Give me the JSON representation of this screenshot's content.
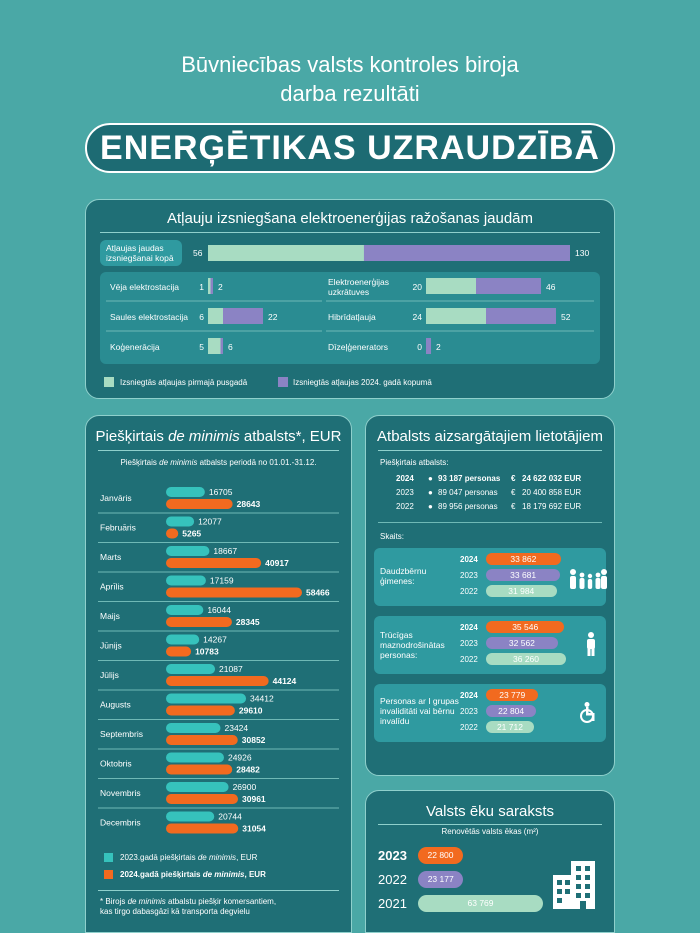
{
  "header": {
    "title_line1": "Būvniecības valsts kontroles biroja",
    "title_line2": "darba rezultāti",
    "banner": "ENERĢĒTIKAS UZRAUDZĪBĀ"
  },
  "colors": {
    "background": "#4aa8a6",
    "panel": "#1f6f76",
    "green": "#a8dcc2",
    "purple": "#8b83c4",
    "teal": "#36c2bc",
    "orange": "#f26a1f"
  },
  "permits": {
    "title": "Atļauju izsniegšana elektroenerģijas ražošanas jaudām",
    "total_label": "Atļaujas jaudas izsniegšanai kopā",
    "total_first": "56",
    "total_year": "130",
    "legend_first": "Izsniegtās atļaujas pirmajā pusgadā",
    "legend_year": "Izsniegtās atļaujas 2024. gadā kopumā"
  },
  "support": {
    "title_pre": "Piešķirtais ",
    "title_it": "de minimis",
    "title_post": " atbalsts*, EUR",
    "subtitle_pre": "Piešķirtais ",
    "subtitle_it": "de minimis",
    "subtitle_post": " atbalsts periodā no 01.01.-31.12.",
    "legend_2023_pre": "2023.gadā piešķirtais ",
    "legend_2023_it": "de minimis",
    "legend_2023_post": ", EUR",
    "legend_2024_pre": "2024.gadā piešķirtais ",
    "legend_2024_it": "de minimis",
    "legend_2024_post": ", EUR",
    "footnote_pre": "* Birojs ",
    "footnote_it": "de minimis",
    "footnote_post": " atbalstu piešķir komersantiem,",
    "footnote_line2": "kas tirgo dabasgāzi kā transporta degvielu"
  },
  "protected": {
    "title": "Atbalsts aizsargātajiem lietotājiem",
    "granted_label": "Piešķirtais atbalsts:",
    "rows": [
      {
        "year": "2024",
        "persons": "93 187 personas",
        "eur": "24 622 032 EUR"
      },
      {
        "year": "2023",
        "persons": "89 047 personas",
        "eur": "20 400 858 EUR"
      },
      {
        "year": "2022",
        "persons": "89 956 personas",
        "eur": "18 179 692 EUR"
      }
    ],
    "count_label": "Skaits:",
    "groups": [
      {
        "label": "Daudzbērnu ģimenes:",
        "y2024": "33 862",
        "y2023": "33 681",
        "y2022": "31 984",
        "icon": "family-icon"
      },
      {
        "label": "Trūcīgas maznodrošinātas personas:",
        "y2024": "35 546",
        "y2023": "32 562",
        "y2022": "36 260",
        "icon": "person-icon"
      },
      {
        "label": "Personas ar I grupas invaliditāti vai bērnu invalīdu",
        "y2024": "23 779",
        "y2023": "22 804",
        "y2022": "21 712",
        "icon": "wheelchair-icon"
      }
    ]
  },
  "buildings": {
    "title": "Valsts ēku saraksts",
    "subtitle": "Renovētās valsts ēkas (m²)",
    "rows": [
      {
        "year": "2023",
        "value": "22 800"
      },
      {
        "year": "2022",
        "value": "23 177"
      },
      {
        "year": "2021",
        "value": "63 769"
      }
    ]
  },
  "chart_data": [
    {
      "type": "bar",
      "title": "Atļauju izsniegšana elektroenerģijas ražošanas jaudām",
      "categories": [
        "Vēja elektrostacija",
        "Saules elektrostacija",
        "Koģenerācija",
        "Elektroenerģijas uzkrātuves",
        "Hibrīdatļauja",
        "Dīzeļģenerators"
      ],
      "series": [
        {
          "name": "Izsniegtās atļaujas pirmajā pusgadā",
          "values": [
            1,
            6,
            5,
            20,
            24,
            0
          ]
        },
        {
          "name": "Izsniegtās atļaujas 2024. gadā kopumā",
          "values": [
            2,
            22,
            6,
            46,
            52,
            2
          ]
        }
      ]
    },
    {
      "type": "bar",
      "title": "Piešķirtais de minimis atbalsts*, EUR",
      "categories": [
        "Janvāris",
        "Februāris",
        "Marts",
        "Aprīlis",
        "Maijs",
        "Jūnijs",
        "Jūlijs",
        "Augusts",
        "Septembris",
        "Oktobris",
        "Novembris",
        "Decembris"
      ],
      "series": [
        {
          "name": "2023.gadā piešķirtais de minimis, EUR",
          "values": [
            16705,
            12077,
            18667,
            17159,
            16044,
            14267,
            21087,
            34412,
            23424,
            24926,
            26900,
            20744
          ]
        },
        {
          "name": "2024.gadā piešķirtais de minimis, EUR",
          "values": [
            28643,
            5265,
            40917,
            58466,
            28345,
            10783,
            44124,
            29610,
            30852,
            28482,
            30961,
            31054
          ]
        }
      ]
    },
    {
      "type": "bar",
      "title": "Renovētās valsts ēkas (m²)",
      "categories": [
        "2023",
        "2022",
        "2021"
      ],
      "values": [
        22800,
        23177,
        63769
      ]
    }
  ]
}
